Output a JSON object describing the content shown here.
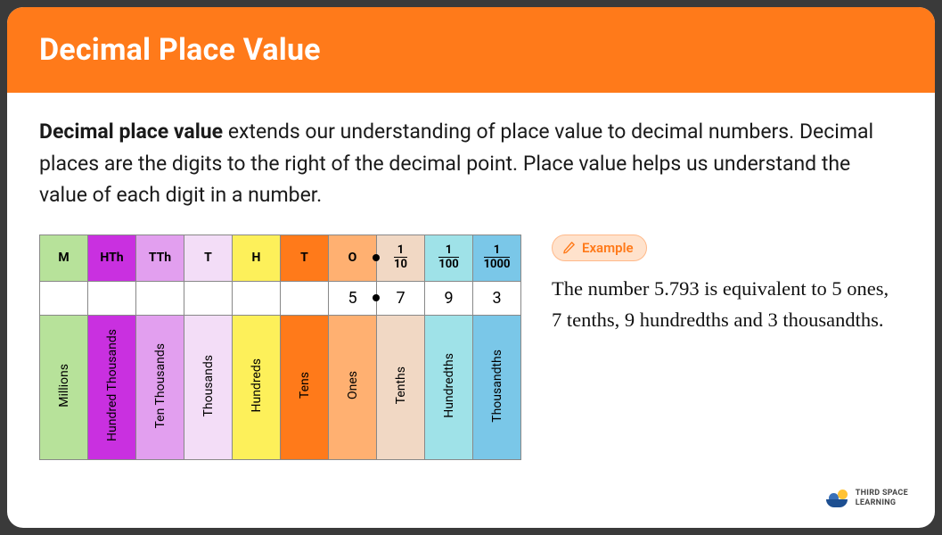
{
  "header": {
    "title": "Decimal Place Value"
  },
  "intro": {
    "bold": "Decimal place value",
    "rest": " extends our understanding of place value to decimal numbers. Decimal places are the digits to the right of the decimal point. Place value helps us understand the value of each digit in a number."
  },
  "table": {
    "columns": [
      {
        "abbr": "M",
        "label": "Millions",
        "bg": "#b7e29a",
        "text": "#2f6b2f"
      },
      {
        "abbr": "HTh",
        "label": "Hundred Thousands",
        "bg": "#c930e0",
        "text": "#5a0970"
      },
      {
        "abbr": "TTh",
        "label": "Ten Thousands",
        "bg": "#e29fef",
        "text": "#7a2a8c"
      },
      {
        "abbr": "T",
        "label": "Thousands",
        "bg": "#f3ddf7",
        "text": "#7a4a88"
      },
      {
        "abbr": "H",
        "label": "Hundreds",
        "bg": "#fdf05a",
        "text": "#6b6200"
      },
      {
        "abbr": "T",
        "label": "Tens",
        "bg": "#ff7a1a",
        "text": "#7a3300"
      },
      {
        "abbr": "O",
        "label": "Ones",
        "bg": "#ffb071",
        "text": "#7a4a1a"
      },
      {
        "frac_num": "1",
        "frac_den": "10",
        "label": "Tenths",
        "bg": "#f1d8c4",
        "text": "#6b5a4a"
      },
      {
        "frac_num": "1",
        "frac_den": "100",
        "label": "Hundredths",
        "bg": "#9fe2e8",
        "text": "#2a6b72"
      },
      {
        "frac_num": "1",
        "frac_den": "1000",
        "label": "Thousandths",
        "bg": "#7ac7e8",
        "text": "#1a5a7a"
      }
    ],
    "values": [
      "",
      "",
      "",
      "",
      "",
      "",
      "5",
      "7",
      "9",
      "3"
    ],
    "decimal_after_index": 6
  },
  "example": {
    "badge": "Example",
    "text_parts": [
      "The number ",
      "5.793",
      " is equivalent to ",
      "5",
      " ones, ",
      "7",
      " tenths, ",
      "9",
      " hundredths and ",
      "3",
      " thousandths."
    ]
  },
  "brand": {
    "line1": "THIRD SPACE",
    "line2": "LEARNING"
  }
}
